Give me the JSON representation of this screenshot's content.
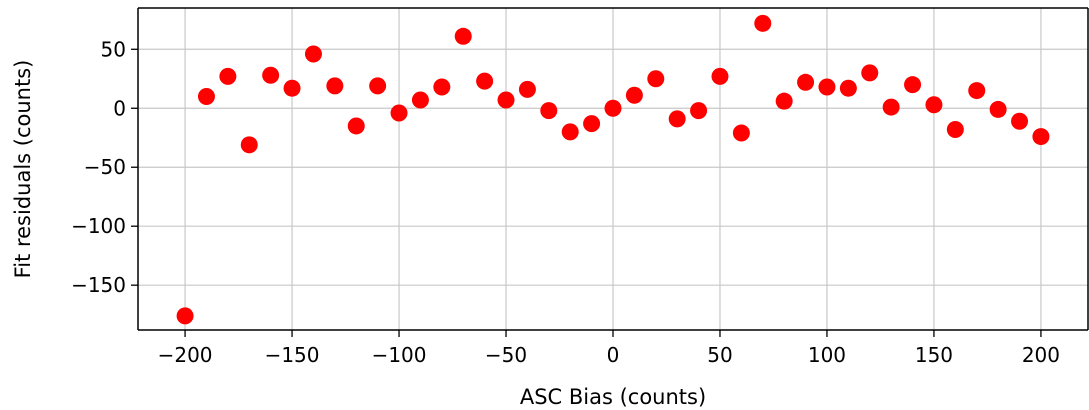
{
  "chart_data": {
    "type": "scatter",
    "title": "",
    "xlabel": "ASC Bias (counts)",
    "ylabel": "Fit residuals (counts)",
    "xlim": [
      -222,
      222
    ],
    "ylim": [
      -188,
      85
    ],
    "xticks": [
      -200,
      -150,
      -100,
      -50,
      0,
      50,
      100,
      150,
      200
    ],
    "yticks": [
      -150,
      -100,
      -50,
      0,
      50
    ],
    "grid": true,
    "marker_color": "#ff0000",
    "series": [
      {
        "x": [
          -200,
          -190,
          -180,
          -170,
          -160,
          -150,
          -140,
          -130,
          -120,
          -110,
          -100,
          -90,
          -80,
          -70,
          -60,
          -50,
          -40,
          -30,
          -20,
          -10,
          0,
          10,
          20,
          30,
          40,
          50,
          60,
          70,
          80,
          90,
          100,
          110,
          120,
          130,
          140,
          150,
          160,
          170,
          180,
          190,
          200
        ],
        "y": [
          -176,
          10,
          27,
          -31,
          28,
          17,
          46,
          19,
          -15,
          19,
          -4,
          7,
          18,
          61,
          23,
          7,
          16,
          -2,
          -20,
          -13,
          0,
          11,
          25,
          -9,
          -2,
          27,
          -21,
          72,
          6,
          22,
          18,
          17,
          30,
          1,
          20,
          3,
          -18,
          15,
          -1,
          -11,
          -24
        ]
      }
    ]
  }
}
